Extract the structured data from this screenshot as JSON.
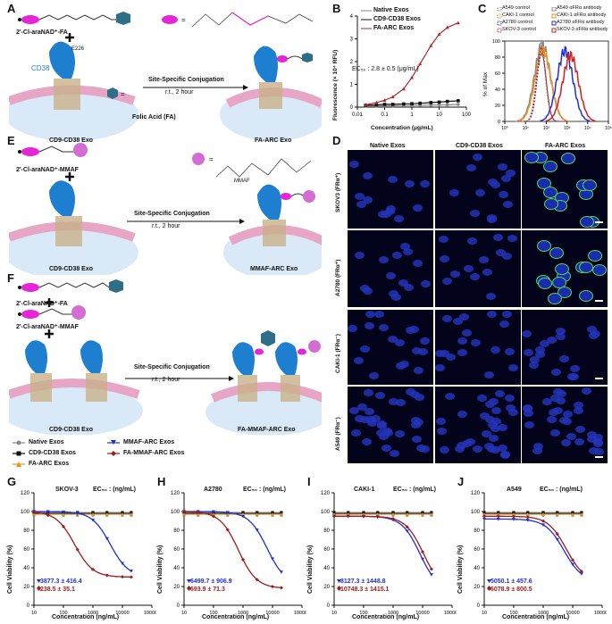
{
  "panel_labels": {
    "a": "A",
    "b": "B",
    "c": "C",
    "d": "D",
    "e": "E",
    "f": "F",
    "g": "G",
    "h": "H",
    "i": "I",
    "j": "J"
  },
  "schemes": {
    "a": {
      "reagent": "2'-Cl-araNAD⁺-FA",
      "cd38": "CD38",
      "residue": "E226",
      "arrow_top": "Site-Specific Conjugation",
      "arrow_bottom": "r.t., 2 hour",
      "folic_acid": "Folic Acid  (FA)",
      "left_exo": "CD9-CD38 Exo",
      "right_exo": "FA-ARC Exo",
      "eq": "="
    },
    "e": {
      "reagent": "2'-Cl-araNAD⁺-MMAF",
      "mmaf": "MMAF",
      "arrow_top": "Site-Specific Conjugation",
      "arrow_bottom": "r.t., 2 hour",
      "left_exo": "CD9-CD38 Exo",
      "right_exo": "MMAF-ARC Exo",
      "eq": "="
    },
    "f": {
      "reagent1": "2'-Cl-araNAD⁺-FA",
      "reagent2": "2'-Cl-araNAD⁺-MMAF",
      "arrow_top": "Site-Specific Conjugation",
      "arrow_bottom": "r.t., 2 hour",
      "left_exo": "CD9-CD38 Exo",
      "right_exo": "FA-MMAF-ARC Exo"
    }
  },
  "colors": {
    "native": "#8a8a8a",
    "cd9cd38": "#111111",
    "fa_arc": "#e8951e",
    "mmaf_arc": "#1f2fd6",
    "fa_mmaf_arc": "#a01b1b",
    "red_curve": "#b0282d",
    "fa_pink": "#e426d8",
    "exo_blue": "#1e7fd0"
  },
  "panel_b": {
    "chart_data": {
      "type": "line",
      "ylabel": "Fluorescence (× 10⁴ RFU)",
      "xlabel": "Concentration (μg/mL)",
      "xscale": "log",
      "xlim": [
        0.01,
        100
      ],
      "ylim": [
        0,
        4
      ],
      "x_ticks": [
        "0.01",
        "0.1",
        "1",
        "10",
        "100"
      ],
      "y_ticks": [
        "0",
        "1",
        "2",
        "3",
        "4"
      ],
      "annotation": "EC₅₀ : 2.8 ± 0.5 (μg/mL)",
      "series": [
        {
          "name": "Native Exos",
          "x": [
            0.02,
            0.05,
            0.1,
            0.2,
            0.5,
            1,
            2,
            5,
            10,
            20,
            50
          ],
          "y": [
            0.05,
            0.05,
            0.06,
            0.06,
            0.07,
            0.07,
            0.08,
            0.09,
            0.1,
            0.1,
            0.12
          ]
        },
        {
          "name": "CD9-CD38 Exos",
          "x": [
            0.02,
            0.05,
            0.1,
            0.2,
            0.5,
            1,
            2,
            5,
            10,
            20,
            50
          ],
          "y": [
            0.08,
            0.1,
            0.12,
            0.12,
            0.14,
            0.15,
            0.17,
            0.2,
            0.22,
            0.25,
            0.28
          ]
        },
        {
          "name": "FA-ARC Exos",
          "x": [
            0.02,
            0.05,
            0.1,
            0.2,
            0.5,
            1,
            2,
            5,
            10,
            20,
            50
          ],
          "y": [
            0.1,
            0.2,
            0.3,
            0.45,
            0.8,
            1.3,
            1.9,
            2.7,
            3.2,
            3.5,
            3.7
          ]
        }
      ]
    }
  },
  "panel_c": {
    "chart_data": {
      "type": "line",
      "ylabel": "% of Max",
      "xlabel": "",
      "xscale": "log",
      "xlim": [
        1,
        100000
      ],
      "ylim": [
        0,
        100
      ],
      "x_ticks": [
        "10⁰",
        "10¹",
        "10²",
        "10³",
        "10⁴",
        "10⁵"
      ],
      "y_ticks": [
        "0",
        "20",
        "40",
        "60",
        "80",
        "100"
      ],
      "series": [
        {
          "name": "A549 control",
          "dashed": true,
          "color": "#888888",
          "peak": 55,
          "height": 98
        },
        {
          "name": "A549 αFRα antibody",
          "dashed": false,
          "color": "#888888",
          "peak": 65,
          "height": 95
        },
        {
          "name": "CAKI-1 control",
          "dashed": true,
          "color": "#e8951e",
          "peak": 55,
          "height": 90
        },
        {
          "name": "CAKI-1 αFRα antibody",
          "dashed": false,
          "color": "#e8951e",
          "peak": 70,
          "height": 88
        },
        {
          "name": "A2780 control",
          "dashed": true,
          "color": "#1f2fd6",
          "peak": 60,
          "height": 85
        },
        {
          "name": "A2780 αFRα antibody",
          "dashed": false,
          "color": "#1f2fd6",
          "peak": 800,
          "height": 88
        },
        {
          "name": "SKOV-3 control",
          "dashed": true,
          "color": "#d21f1f",
          "peak": 58,
          "height": 92
        },
        {
          "name": "SKOV-3 αFRα antibody",
          "dashed": false,
          "color": "#d21f1f",
          "peak": 1500,
          "height": 82
        }
      ]
    }
  },
  "panel_d": {
    "col_headers": [
      "Native Exos",
      "CD9-CD38 Exos",
      "FA-ARC Exos"
    ],
    "row_labels": [
      "SKOV3 (FRα⁺)",
      "A2780 (FRα⁺)",
      "CAKI-1 (FRα⁻)",
      "A549 (FRα⁻)"
    ]
  },
  "legend_bottom": {
    "items": [
      "Native Exos",
      "MMAF-ARC Exos",
      "CD9-CD38 Exos",
      "FA-MMAF-ARC Exos",
      "FA-ARC Exos"
    ]
  },
  "viability": {
    "ylabel": "Cell Viability (%)",
    "xlabel": "Concentration (ng/mL)",
    "ec50_label": "EC₅₀ : (ng/mL)",
    "x_ticks": [
      "10",
      "100",
      "1000",
      "10000",
      "100000"
    ],
    "y_ticks": [
      "0",
      "20",
      "40",
      "60",
      "80",
      "100",
      "120"
    ],
    "chart_data": [
      {
        "type": "line",
        "title": "SKOV-3",
        "xscale": "log",
        "xlim": [
          10,
          100000
        ],
        "ylim": [
          0,
          120
        ],
        "ec50": {
          "mmaf": "3877.3 ± 416.4",
          "fa_mmaf": "238.5 ± 35.1"
        },
        "series": [
          {
            "name": "MMAF-ARC Exos",
            "ec50": 3877,
            "bottom": 30,
            "top": 100
          },
          {
            "name": "FA-MMAF-ARC Exos",
            "ec50": 238,
            "bottom": 30,
            "top": 100
          }
        ]
      },
      {
        "type": "line",
        "title": "A2780",
        "xscale": "log",
        "xlim": [
          10,
          100000
        ],
        "ylim": [
          0,
          120
        ],
        "ec50": {
          "mmaf": "6499.7 ± 906.9",
          "fa_mmaf": "693.9 ± 71.3"
        },
        "series": [
          {
            "name": "MMAF-ARC Exos",
            "ec50": 6500,
            "bottom": 22,
            "top": 100
          },
          {
            "name": "FA-MMAF-ARC Exos",
            "ec50": 694,
            "bottom": 18,
            "top": 100
          }
        ]
      },
      {
        "type": "line",
        "title": "CAKI-1",
        "xscale": "log",
        "xlim": [
          10,
          100000
        ],
        "ylim": [
          0,
          120
        ],
        "ec50": {
          "mmaf": "8127.3 ± 1448.8",
          "fa_mmaf": "10748.3 ± 1415.1"
        },
        "series": [
          {
            "name": "MMAF-ARC Exos",
            "ec50": 8127,
            "bottom": 15,
            "top": 95
          },
          {
            "name": "FA-MMAF-ARC Exos",
            "ec50": 10748,
            "bottom": 15,
            "top": 95
          }
        ]
      },
      {
        "type": "line",
        "title": "A549",
        "xscale": "log",
        "xlim": [
          10,
          100000
        ],
        "ylim": [
          0,
          120
        ],
        "ec50": {
          "mmaf": "5050.1 ± 457.6",
          "fa_mmaf": "6078.9 ± 800.5"
        },
        "series": [
          {
            "name": "MMAF-ARC Exos",
            "ec50": 5050,
            "bottom": 25,
            "top": 92
          },
          {
            "name": "FA-MMAF-ARC Exos",
            "ec50": 6079,
            "bottom": 25,
            "top": 95
          }
        ]
      }
    ]
  }
}
